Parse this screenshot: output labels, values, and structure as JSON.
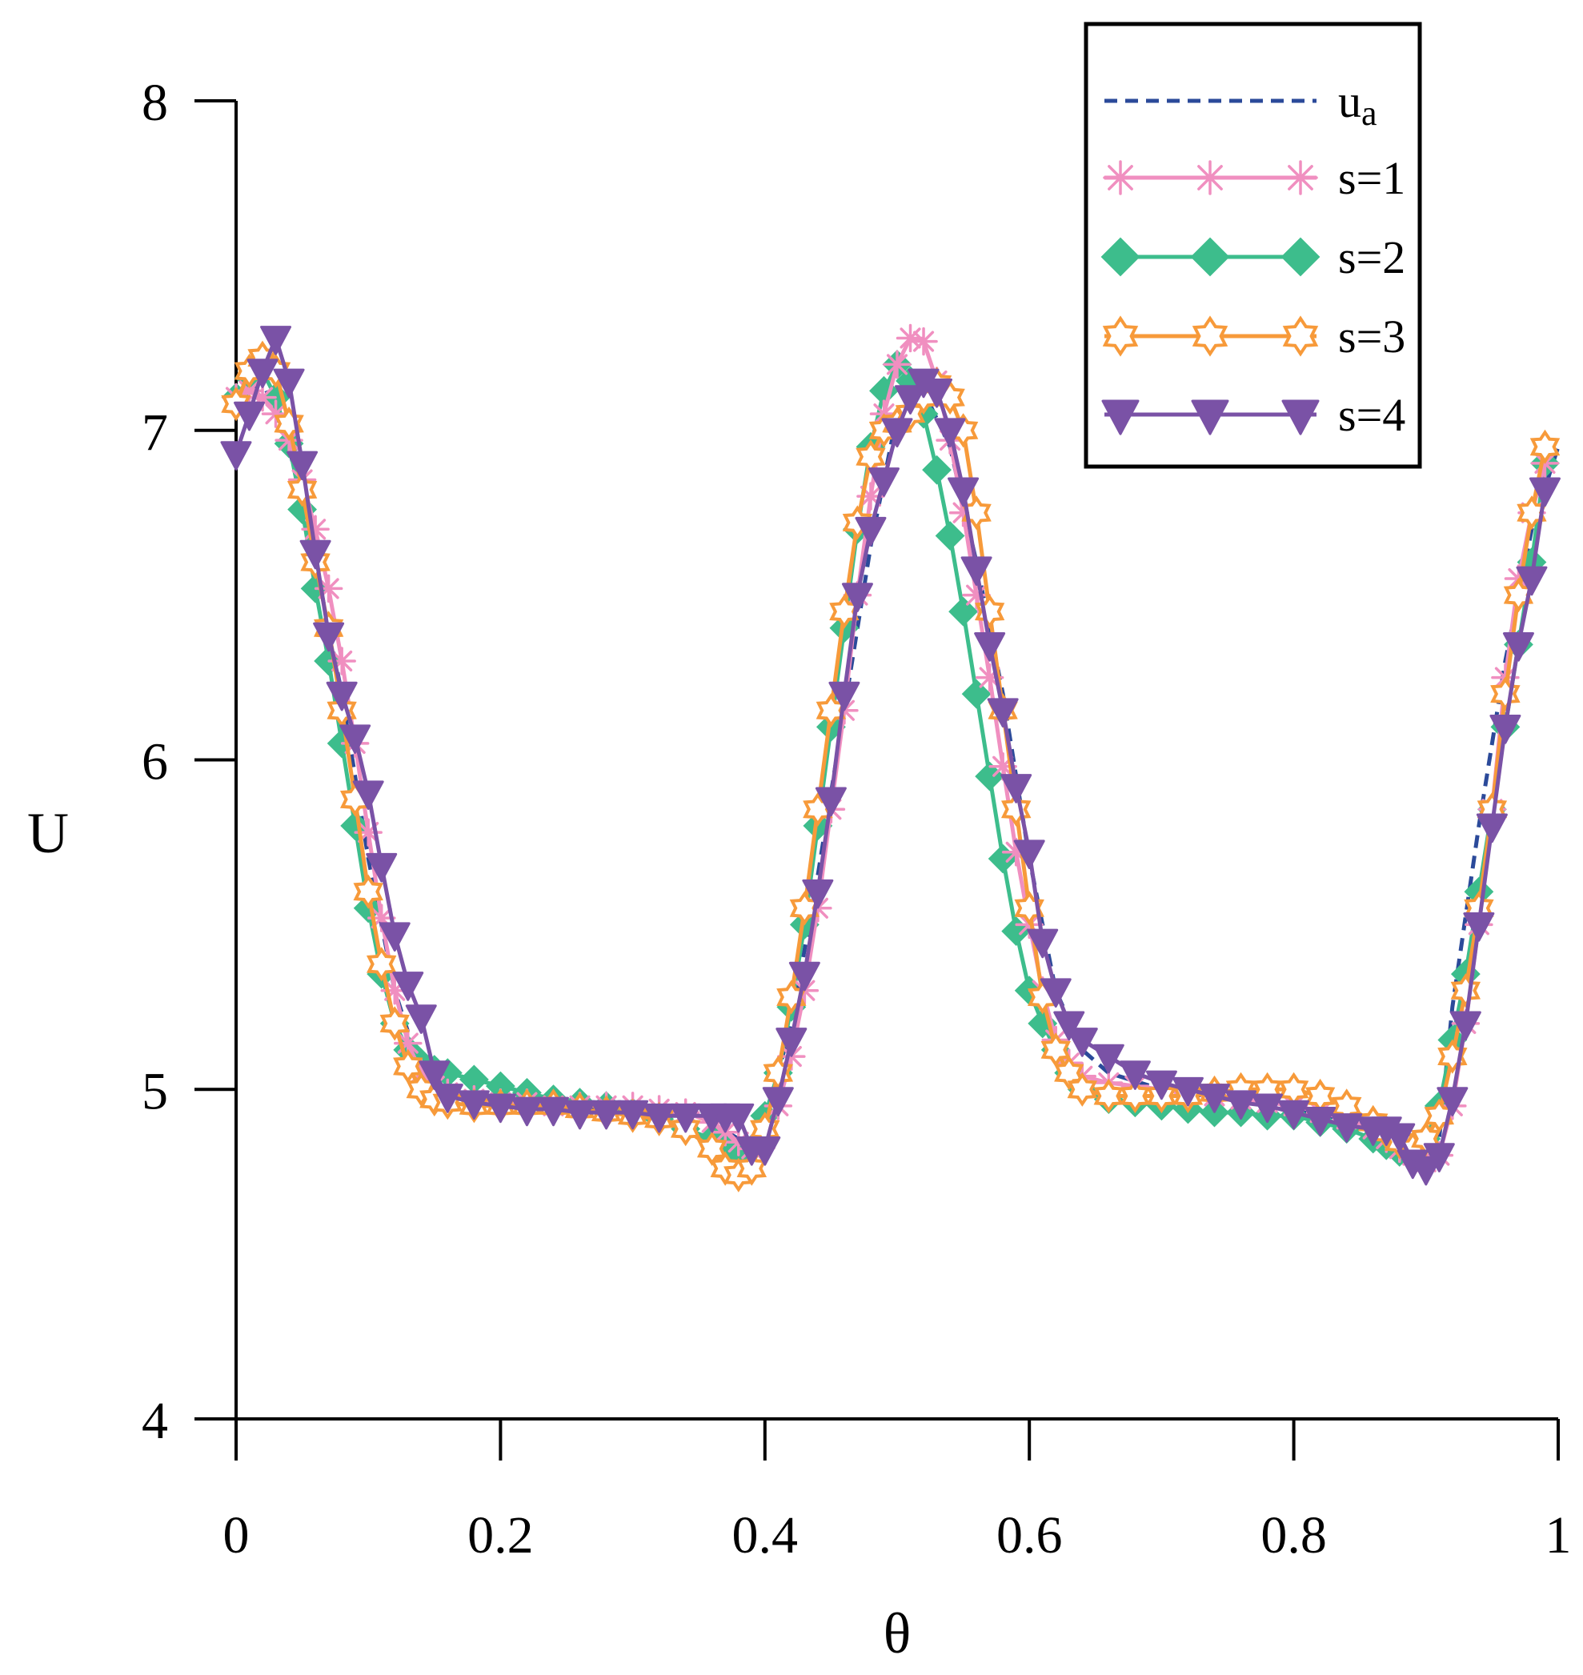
{
  "chart_data": {
    "type": "line",
    "title": "",
    "xlabel": "θ",
    "ylabel": "U",
    "xlim": [
      0,
      1
    ],
    "ylim": [
      4,
      8
    ],
    "xticks": [
      0,
      0.2,
      0.4,
      0.6,
      0.8,
      1
    ],
    "xtick_labels": [
      "0",
      "0.2",
      "0.4",
      "0.6",
      "0.8",
      "1"
    ],
    "yticks": [
      4,
      5,
      6,
      7,
      8
    ],
    "ytick_labels": [
      "4",
      "5",
      "6",
      "7",
      "8"
    ],
    "grid": false,
    "legend_position": "top-right",
    "legend": [
      {
        "label": "u",
        "sub": "a"
      },
      {
        "label": "s=1"
      },
      {
        "label": "s=2"
      },
      {
        "label": "s=3"
      },
      {
        "label": "s=4"
      }
    ],
    "series": [
      {
        "name": "u_a",
        "color": "#2b4a9a",
        "style": "dashed",
        "marker": "none",
        "x": [
          0,
          0.02,
          0.04,
          0.06,
          0.08,
          0.1,
          0.12,
          0.14,
          0.16,
          0.2,
          0.25,
          0.3,
          0.35,
          0.38,
          0.39,
          0.4,
          0.42,
          0.44,
          0.46,
          0.48,
          0.5,
          0.52,
          0.54,
          0.56,
          0.58,
          0.6,
          0.62,
          0.64,
          0.66,
          0.7,
          0.75,
          0.8,
          0.85,
          0.89,
          0.9,
          0.91,
          0.92,
          0.94,
          0.96,
          0.98,
          1
        ],
        "values": [
          7.1,
          7.15,
          6.95,
          6.6,
          6.2,
          5.7,
          5.3,
          5.05,
          4.99,
          4.96,
          4.95,
          4.94,
          4.92,
          4.85,
          4.82,
          4.9,
          5.2,
          5.65,
          6.15,
          6.65,
          7.05,
          7.12,
          6.95,
          6.6,
          6.2,
          5.7,
          5.3,
          5.12,
          5.05,
          5.0,
          4.97,
          4.94,
          4.9,
          4.8,
          4.78,
          4.85,
          5.25,
          5.8,
          6.3,
          6.7,
          6.95
        ]
      },
      {
        "name": "s=1",
        "color": "#f08fc0",
        "style": "solid",
        "marker": "asterisk",
        "x": [
          0,
          0.01,
          0.02,
          0.03,
          0.04,
          0.05,
          0.06,
          0.07,
          0.08,
          0.09,
          0.1,
          0.11,
          0.12,
          0.13,
          0.14,
          0.15,
          0.16,
          0.18,
          0.2,
          0.22,
          0.24,
          0.26,
          0.28,
          0.3,
          0.32,
          0.34,
          0.36,
          0.37,
          0.38,
          0.39,
          0.4,
          0.41,
          0.42,
          0.43,
          0.44,
          0.45,
          0.46,
          0.47,
          0.48,
          0.49,
          0.5,
          0.51,
          0.52,
          0.53,
          0.54,
          0.55,
          0.56,
          0.57,
          0.58,
          0.59,
          0.6,
          0.61,
          0.62,
          0.63,
          0.64,
          0.66,
          0.68,
          0.7,
          0.72,
          0.74,
          0.76,
          0.78,
          0.8,
          0.82,
          0.84,
          0.86,
          0.87,
          0.88,
          0.89,
          0.9,
          0.91,
          0.92,
          0.93,
          0.94,
          0.95,
          0.96,
          0.97,
          0.98,
          0.99
        ],
        "values": [
          7.1,
          7.12,
          7.1,
          7.05,
          6.97,
          6.85,
          6.7,
          6.52,
          6.3,
          6.05,
          5.78,
          5.52,
          5.3,
          5.14,
          5.05,
          5.01,
          4.99,
          4.97,
          4.96,
          4.96,
          4.95,
          4.95,
          4.95,
          4.95,
          4.94,
          4.93,
          4.9,
          4.87,
          4.84,
          4.82,
          4.85,
          4.95,
          5.1,
          5.3,
          5.55,
          5.85,
          6.15,
          6.5,
          6.8,
          7.05,
          7.2,
          7.28,
          7.27,
          7.15,
          6.97,
          6.75,
          6.5,
          6.25,
          5.98,
          5.72,
          5.5,
          5.3,
          5.15,
          5.08,
          5.04,
          5.02,
          5.01,
          5.0,
          4.99,
          4.98,
          4.97,
          4.96,
          4.95,
          4.93,
          4.91,
          4.88,
          4.85,
          4.82,
          4.8,
          4.78,
          4.8,
          4.95,
          5.2,
          5.5,
          5.85,
          6.25,
          6.55,
          6.75,
          6.9
        ]
      },
      {
        "name": "s=2",
        "color": "#3dbd8c",
        "style": "solid",
        "marker": "diamond",
        "x": [
          0,
          0.01,
          0.02,
          0.03,
          0.04,
          0.05,
          0.06,
          0.07,
          0.08,
          0.09,
          0.1,
          0.11,
          0.12,
          0.13,
          0.14,
          0.15,
          0.16,
          0.18,
          0.2,
          0.22,
          0.24,
          0.26,
          0.28,
          0.3,
          0.32,
          0.34,
          0.36,
          0.37,
          0.38,
          0.39,
          0.4,
          0.41,
          0.42,
          0.43,
          0.44,
          0.45,
          0.46,
          0.47,
          0.48,
          0.49,
          0.5,
          0.51,
          0.52,
          0.53,
          0.54,
          0.55,
          0.56,
          0.57,
          0.58,
          0.59,
          0.6,
          0.61,
          0.62,
          0.63,
          0.64,
          0.66,
          0.68,
          0.7,
          0.72,
          0.74,
          0.76,
          0.78,
          0.8,
          0.82,
          0.84,
          0.86,
          0.87,
          0.88,
          0.89,
          0.9,
          0.91,
          0.92,
          0.93,
          0.94,
          0.95,
          0.96,
          0.97,
          0.98,
          0.99
        ],
        "values": [
          7.1,
          7.16,
          7.18,
          7.1,
          6.96,
          6.76,
          6.52,
          6.3,
          6.05,
          5.8,
          5.55,
          5.35,
          5.2,
          5.12,
          5.08,
          5.06,
          5.05,
          5.03,
          5.01,
          4.99,
          4.97,
          4.96,
          4.95,
          4.93,
          4.91,
          4.88,
          4.85,
          4.82,
          4.8,
          4.82,
          4.92,
          5.05,
          5.25,
          5.5,
          5.8,
          6.1,
          6.4,
          6.7,
          6.95,
          7.12,
          7.2,
          7.15,
          7.05,
          6.88,
          6.68,
          6.45,
          6.2,
          5.95,
          5.7,
          5.48,
          5.3,
          5.2,
          5.12,
          5.05,
          5.0,
          4.97,
          4.96,
          4.95,
          4.94,
          4.93,
          4.93,
          4.92,
          4.92,
          4.9,
          4.88,
          4.85,
          4.83,
          4.81,
          4.8,
          4.85,
          4.95,
          5.15,
          5.35,
          5.6,
          5.85,
          6.1,
          6.35,
          6.6,
          6.9
        ]
      },
      {
        "name": "s=3",
        "color": "#f79a3a",
        "style": "solid",
        "marker": "star",
        "x": [
          0,
          0.01,
          0.02,
          0.03,
          0.04,
          0.05,
          0.06,
          0.07,
          0.08,
          0.09,
          0.1,
          0.11,
          0.12,
          0.13,
          0.14,
          0.15,
          0.16,
          0.18,
          0.2,
          0.22,
          0.24,
          0.26,
          0.28,
          0.3,
          0.32,
          0.34,
          0.36,
          0.37,
          0.38,
          0.39,
          0.4,
          0.41,
          0.42,
          0.43,
          0.44,
          0.45,
          0.46,
          0.47,
          0.48,
          0.49,
          0.5,
          0.51,
          0.52,
          0.53,
          0.54,
          0.55,
          0.56,
          0.57,
          0.58,
          0.59,
          0.6,
          0.61,
          0.62,
          0.63,
          0.64,
          0.66,
          0.68,
          0.7,
          0.72,
          0.74,
          0.76,
          0.78,
          0.8,
          0.82,
          0.84,
          0.86,
          0.87,
          0.88,
          0.89,
          0.9,
          0.91,
          0.92,
          0.93,
          0.94,
          0.95,
          0.96,
          0.97,
          0.98,
          0.99
        ],
        "values": [
          7.08,
          7.18,
          7.22,
          7.18,
          7.02,
          6.82,
          6.6,
          6.4,
          6.15,
          5.88,
          5.6,
          5.38,
          5.2,
          5.07,
          5.0,
          4.97,
          4.96,
          4.95,
          4.95,
          4.95,
          4.95,
          4.94,
          4.93,
          4.92,
          4.91,
          4.88,
          4.82,
          4.76,
          4.74,
          4.76,
          4.88,
          5.05,
          5.28,
          5.55,
          5.85,
          6.15,
          6.45,
          6.72,
          6.92,
          7.0,
          7.02,
          7.05,
          7.1,
          7.14,
          7.1,
          7.0,
          6.75,
          6.45,
          6.15,
          5.85,
          5.55,
          5.28,
          5.12,
          5.05,
          5.0,
          4.98,
          4.98,
          4.98,
          4.98,
          4.99,
          5.0,
          5.0,
          5.0,
          4.98,
          4.95,
          4.9,
          4.87,
          4.84,
          4.82,
          4.85,
          4.92,
          5.1,
          5.3,
          5.55,
          5.85,
          6.2,
          6.5,
          6.75,
          6.95
        ]
      },
      {
        "name": "s=4",
        "color": "#7a52a6",
        "style": "solid",
        "marker": "triangle-down",
        "x": [
          0,
          0.01,
          0.02,
          0.03,
          0.04,
          0.05,
          0.06,
          0.07,
          0.08,
          0.09,
          0.1,
          0.11,
          0.12,
          0.13,
          0.14,
          0.15,
          0.16,
          0.18,
          0.2,
          0.22,
          0.24,
          0.26,
          0.28,
          0.3,
          0.32,
          0.34,
          0.36,
          0.37,
          0.38,
          0.39,
          0.4,
          0.41,
          0.42,
          0.43,
          0.44,
          0.45,
          0.46,
          0.47,
          0.48,
          0.49,
          0.5,
          0.51,
          0.52,
          0.53,
          0.54,
          0.55,
          0.56,
          0.57,
          0.58,
          0.59,
          0.6,
          0.61,
          0.62,
          0.63,
          0.64,
          0.66,
          0.68,
          0.7,
          0.72,
          0.74,
          0.76,
          0.78,
          0.8,
          0.82,
          0.84,
          0.86,
          0.87,
          0.88,
          0.89,
          0.9,
          0.91,
          0.92,
          0.93,
          0.94,
          0.95,
          0.96,
          0.97,
          0.98,
          0.99
        ],
        "values": [
          6.93,
          7.05,
          7.18,
          7.28,
          7.15,
          6.9,
          6.63,
          6.38,
          6.2,
          6.07,
          5.9,
          5.68,
          5.47,
          5.32,
          5.22,
          5.05,
          4.98,
          4.96,
          4.95,
          4.94,
          4.94,
          4.93,
          4.93,
          4.93,
          4.92,
          4.92,
          4.92,
          4.92,
          4.92,
          4.82,
          4.82,
          4.97,
          5.15,
          5.35,
          5.6,
          5.88,
          6.2,
          6.5,
          6.7,
          6.85,
          7.0,
          7.1,
          7.15,
          7.12,
          7.0,
          6.82,
          6.58,
          6.35,
          6.15,
          5.92,
          5.72,
          5.45,
          5.3,
          5.2,
          5.15,
          5.1,
          5.05,
          5.02,
          5.0,
          4.98,
          4.96,
          4.95,
          4.93,
          4.91,
          4.89,
          4.88,
          4.88,
          4.86,
          4.78,
          4.76,
          4.8,
          4.97,
          5.2,
          5.5,
          5.8,
          6.1,
          6.35,
          6.55,
          6.82
        ]
      }
    ]
  }
}
